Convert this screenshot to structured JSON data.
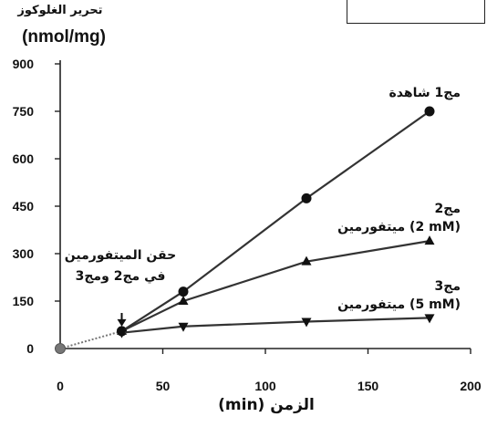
{
  "chart_data": {
    "type": "line",
    "ylabel_line1": "تحرير الغلوكوز",
    "ylabel_line2": "(nmol/mg)",
    "xlabel": "(min) الزمن",
    "x_ticks": [
      0,
      50,
      100,
      150,
      200
    ],
    "y_ticks": [
      0,
      150,
      300,
      450,
      600,
      750,
      900
    ],
    "xlim": [
      0,
      200
    ],
    "ylim": [
      0,
      900
    ],
    "grid": false,
    "legend": "top-right",
    "series": [
      {
        "name": "مج1 شاهدة",
        "label_lines": [
          "مج1 شاهدة"
        ],
        "marker": "circle",
        "x": [
          30,
          60,
          120,
          180
        ],
        "y": [
          55,
          180,
          475,
          750
        ]
      },
      {
        "name": "مج2 ميتفورمين (2 mM)",
        "label_lines": [
          "مج2",
          "ميتفورمين (2 mM)"
        ],
        "marker": "triangle-up",
        "x": [
          30,
          60,
          120,
          180
        ],
        "y": [
          55,
          150,
          275,
          340
        ]
      },
      {
        "name": "مج3 ميتفورمين (5 mM)",
        "label_lines": [
          "مج3",
          "ميتفورمين (5 mM)"
        ],
        "marker": "triangle-down",
        "x": [
          30,
          60,
          120,
          180
        ],
        "y": [
          50,
          70,
          85,
          97
        ]
      }
    ],
    "baseline": {
      "x": [
        0,
        30
      ],
      "y": [
        0,
        55
      ]
    },
    "annotation": {
      "lines": [
        "حقن الميتفورمين",
        "في مج2 ومج3"
      ],
      "arrow_to": {
        "x": 30,
        "y": 55
      }
    }
  }
}
